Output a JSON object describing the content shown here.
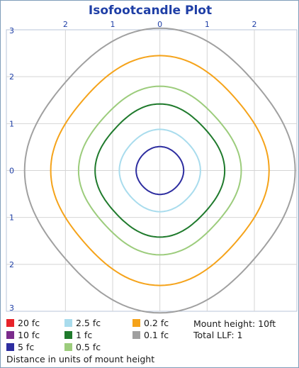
{
  "chart_data": {
    "type": "contour",
    "title": "Isofootcandle Plot",
    "x_tick_labels": [
      "2",
      "1",
      "0",
      "1",
      "2"
    ],
    "x_ticks": [
      -2,
      -1,
      0,
      1,
      2
    ],
    "y_tick_labels": [
      "3",
      "2",
      "1",
      "0",
      "1",
      "2",
      "3"
    ],
    "y_ticks": [
      3,
      2,
      1,
      0,
      -1,
      -2,
      -3
    ],
    "xlim": [
      -3.25,
      2.9
    ],
    "ylim": [
      -3,
      3
    ],
    "grid": true,
    "xlabel": "Distance in units of mount height",
    "series": [
      {
        "name": "20 fc",
        "color": "#e8232a",
        "radius": null
      },
      {
        "name": "10 fc",
        "color": "#7b2c8c",
        "radius": null
      },
      {
        "name": "5 fc",
        "color": "#2e2ea0",
        "radius": 0.5
      },
      {
        "name": "2.5 fc",
        "color": "#a9dced",
        "radius": 0.85
      },
      {
        "name": "1 fc",
        "color": "#1f7a2c",
        "radius": 1.35
      },
      {
        "name": "0.5 fc",
        "color": "#9ccc7c",
        "radius": 1.7
      },
      {
        "name": "0.2 fc",
        "color": "#f5a31a",
        "radius": 2.3
      },
      {
        "name": "0.1 fc",
        "color": "#a0a0a0",
        "radius": 2.85
      }
    ]
  },
  "legend": {
    "items": [
      "20 fc",
      "10 fc",
      "5 fc",
      "2.5 fc",
      "1 fc",
      "0.5 fc",
      "0.2 fc",
      "0.1 fc"
    ],
    "colors": [
      "#e8232a",
      "#7b2c8c",
      "#2e2ea0",
      "#a9dced",
      "#1f7a2c",
      "#9ccc7c",
      "#f5a31a",
      "#a0a0a0"
    ],
    "mount_height": "Mount height: 10ft",
    "total_llf": "Total LLF: 1",
    "distance_note": "Distance in units of mount height"
  }
}
